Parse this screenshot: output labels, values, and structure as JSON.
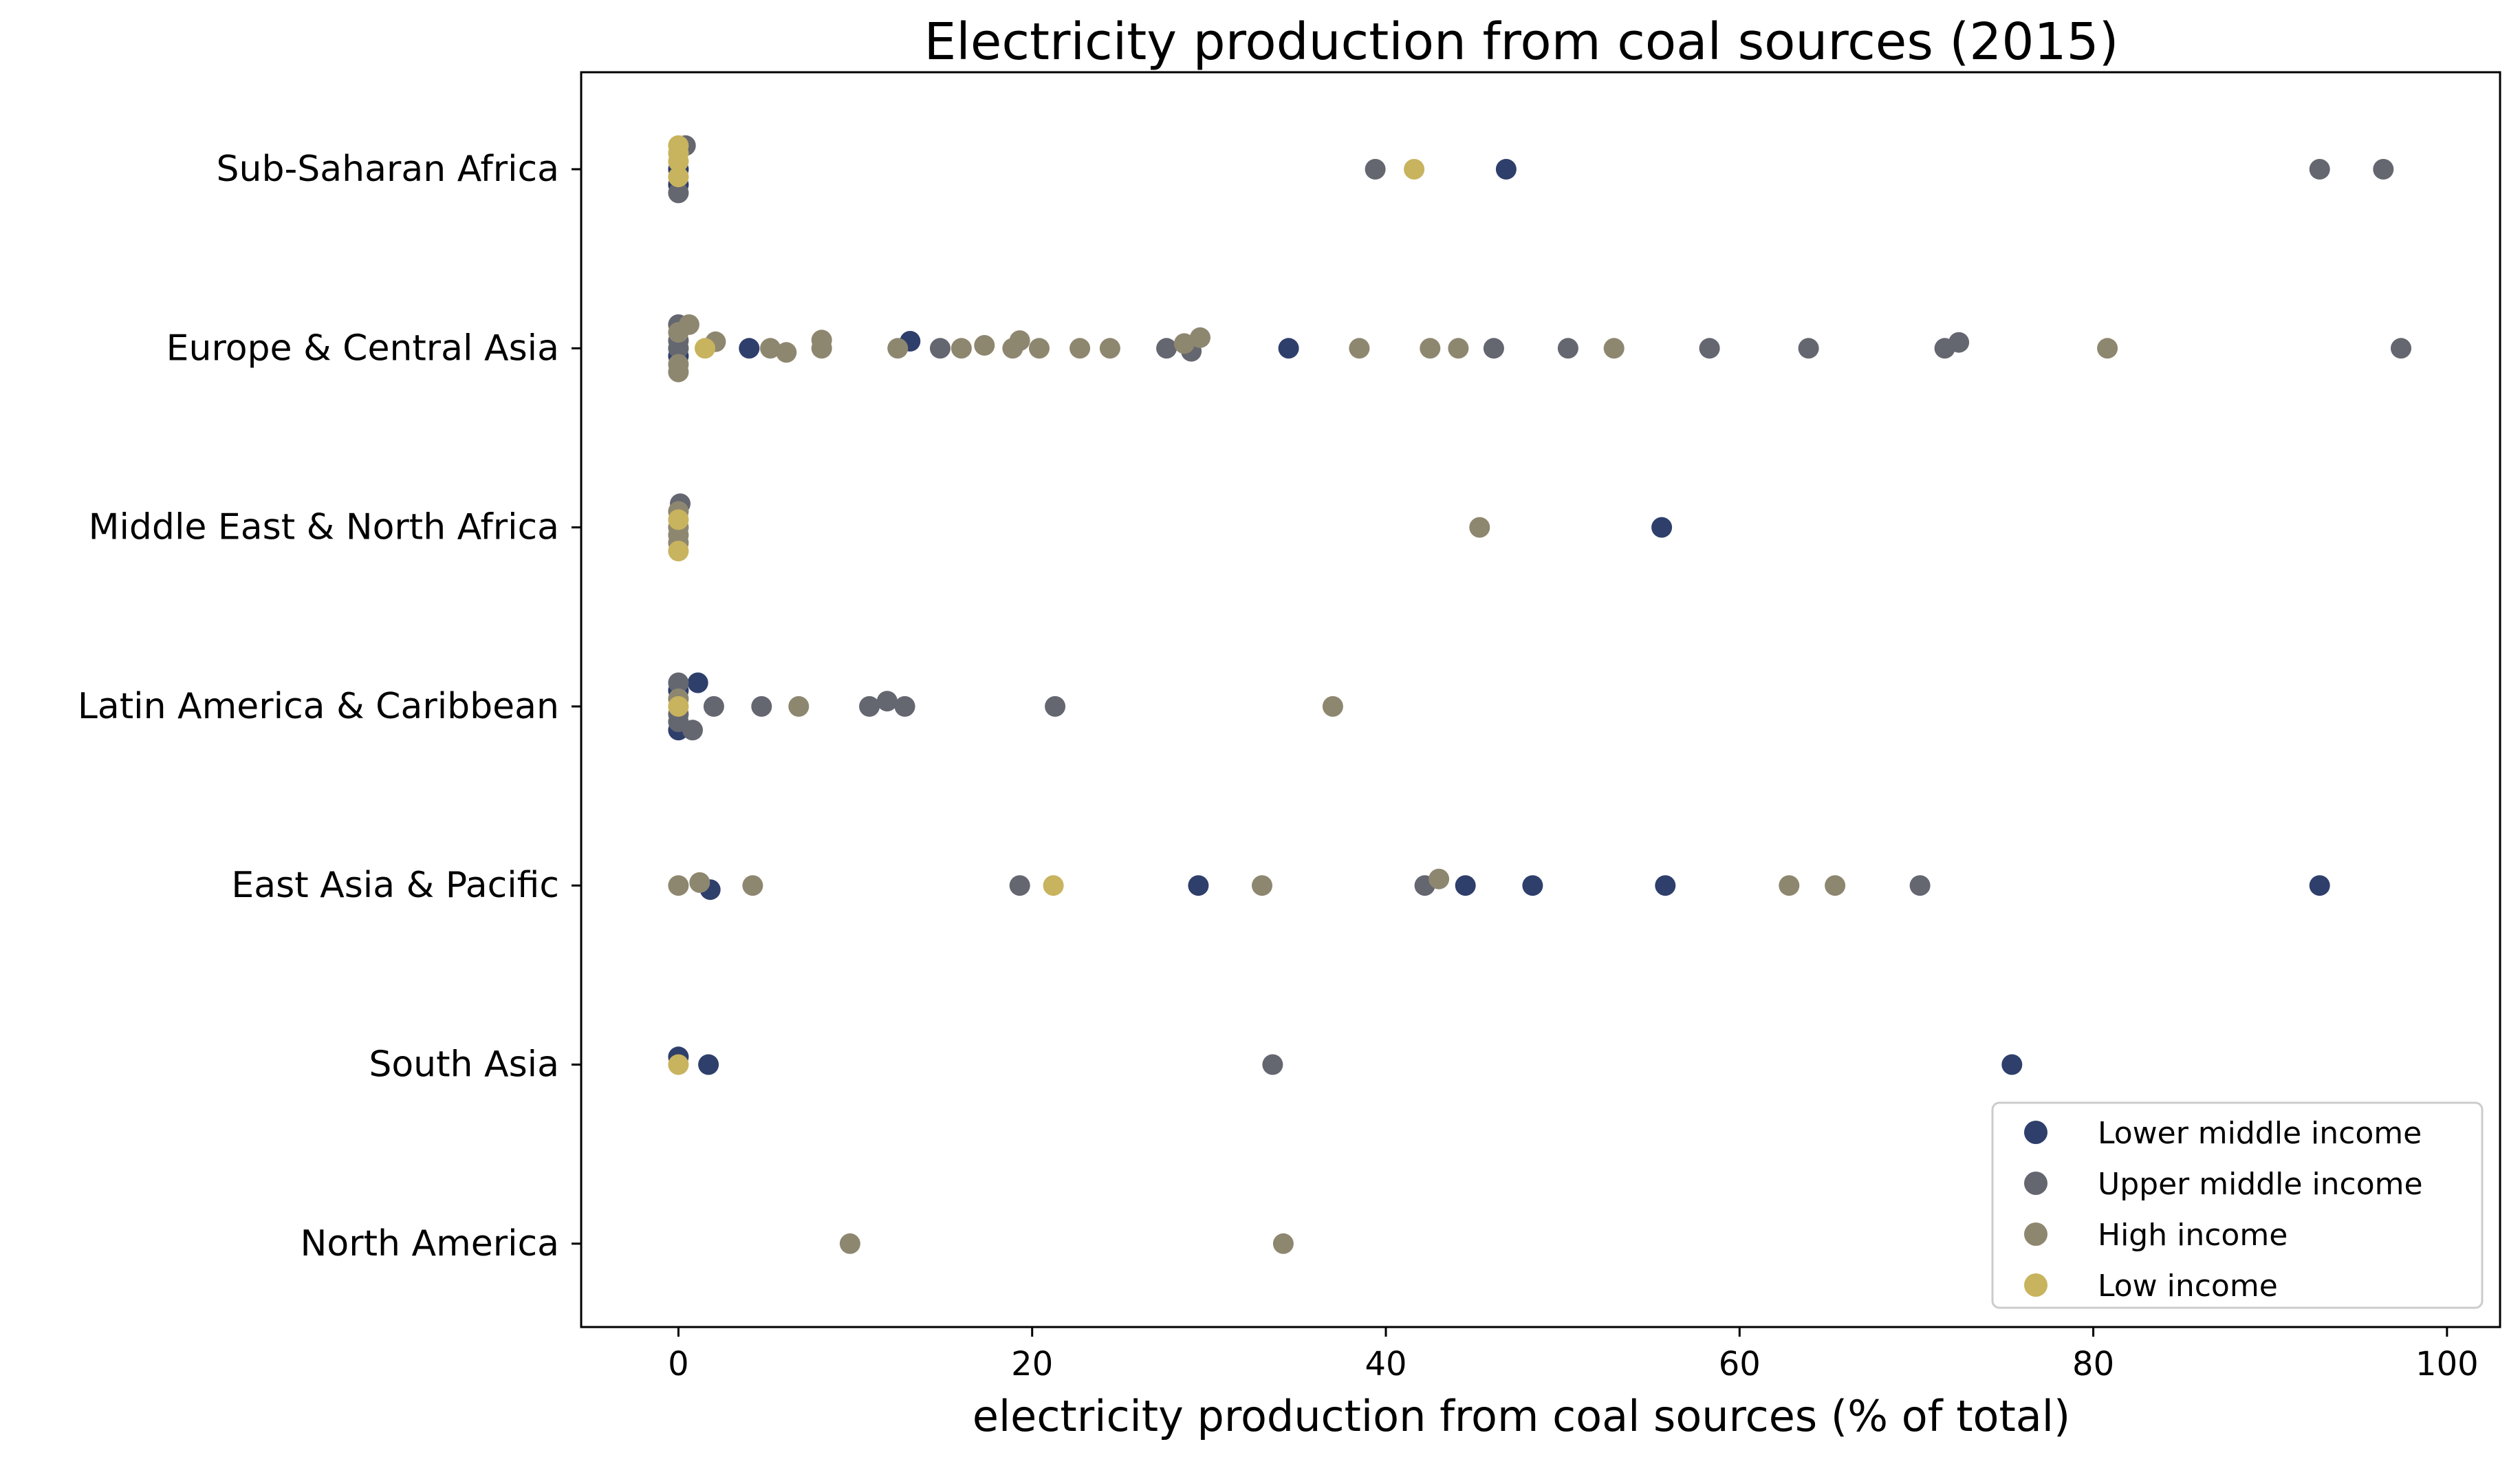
{
  "chart_data": {
    "type": "scatter",
    "subtype": "swarm / strip plot",
    "title": "Electricity production from coal sources (2015)",
    "xlabel": "electricity production from coal sources (% of total)",
    "ylabel": "",
    "xlim": [
      -5.5,
      103
    ],
    "xticks": [
      0,
      20,
      40,
      60,
      80,
      100
    ],
    "xtick_labels": [
      "0",
      "20",
      "40",
      "60",
      "80",
      "100"
    ],
    "categories": [
      "Sub-Saharan Africa",
      "Europe & Central Asia",
      "Middle East & North Africa",
      "Latin America & Caribbean",
      "East Asia & Pacific",
      "South Asia",
      "North America"
    ],
    "grid": false,
    "legend_position": "lower right",
    "series": [
      {
        "name": "Lower middle income",
        "color": "#2f3f6b",
        "points": [
          {
            "category": "Sub-Saharan Africa",
            "x": 0.0,
            "offset": 0.0
          },
          {
            "category": "Sub-Saharan Africa",
            "x": 0.0,
            "offset": 0.26
          },
          {
            "category": "Sub-Saharan Africa",
            "x": 46.8,
            "offset": 0.0
          },
          {
            "category": "Europe & Central Asia",
            "x": 0.0,
            "offset": 0.13
          },
          {
            "category": "Europe & Central Asia",
            "x": 4.0,
            "offset": 0.0
          },
          {
            "category": "Europe & Central Asia",
            "x": 13.1,
            "offset": -0.12
          },
          {
            "category": "Europe & Central Asia",
            "x": 34.5,
            "offset": 0.0
          },
          {
            "category": "Middle East & North Africa",
            "x": 55.6,
            "offset": 0.0
          },
          {
            "category": "Latin America & Caribbean",
            "x": 1.1,
            "offset": -0.4
          },
          {
            "category": "Latin America & Caribbean",
            "x": 0.0,
            "offset": -0.27
          },
          {
            "category": "Latin America & Caribbean",
            "x": 0.0,
            "offset": 0.4
          },
          {
            "category": "East Asia & Pacific",
            "x": 1.8,
            "offset": 0.07
          },
          {
            "category": "East Asia & Pacific",
            "x": 29.4,
            "offset": 0.0
          },
          {
            "category": "East Asia & Pacific",
            "x": 44.5,
            "offset": 0.0
          },
          {
            "category": "East Asia & Pacific",
            "x": 48.3,
            "offset": 0.0
          },
          {
            "category": "East Asia & Pacific",
            "x": 55.8,
            "offset": 0.0
          },
          {
            "category": "East Asia & Pacific",
            "x": 92.8,
            "offset": 0.0
          },
          {
            "category": "South Asia",
            "x": 0.0,
            "offset": -0.13
          },
          {
            "category": "South Asia",
            "x": 1.7,
            "offset": 0.0
          },
          {
            "category": "South Asia",
            "x": 75.4,
            "offset": 0.0
          }
        ]
      },
      {
        "name": "Upper middle income",
        "color": "#646670",
        "points": [
          {
            "category": "Sub-Saharan Africa",
            "x": 0.4,
            "offset": -0.4
          },
          {
            "category": "Sub-Saharan Africa",
            "x": 0.0,
            "offset": 0.4
          },
          {
            "category": "Sub-Saharan Africa",
            "x": 39.4,
            "offset": 0.0
          },
          {
            "category": "Sub-Saharan Africa",
            "x": 92.8,
            "offset": 0.0
          },
          {
            "category": "Sub-Saharan Africa",
            "x": 96.4,
            "offset": 0.0
          },
          {
            "category": "Europe & Central Asia",
            "x": 0.0,
            "offset": -0.4
          },
          {
            "category": "Europe & Central Asia",
            "x": 0.0,
            "offset": -0.13
          },
          {
            "category": "Europe & Central Asia",
            "x": 0.0,
            "offset": 0.0
          },
          {
            "category": "Europe & Central Asia",
            "x": 14.8,
            "offset": 0.0
          },
          {
            "category": "Europe & Central Asia",
            "x": 27.6,
            "offset": 0.0
          },
          {
            "category": "Europe & Central Asia",
            "x": 29.0,
            "offset": 0.05
          },
          {
            "category": "Europe & Central Asia",
            "x": 46.1,
            "offset": 0.0
          },
          {
            "category": "Europe & Central Asia",
            "x": 50.3,
            "offset": 0.0
          },
          {
            "category": "Europe & Central Asia",
            "x": 58.3,
            "offset": 0.0
          },
          {
            "category": "Europe & Central Asia",
            "x": 63.9,
            "offset": 0.0
          },
          {
            "category": "Europe & Central Asia",
            "x": 71.6,
            "offset": 0.0
          },
          {
            "category": "Europe & Central Asia",
            "x": 72.4,
            "offset": -0.1
          },
          {
            "category": "Europe & Central Asia",
            "x": 97.4,
            "offset": 0.0
          },
          {
            "category": "Middle East & North Africa",
            "x": 0.1,
            "offset": -0.4
          },
          {
            "category": "Latin America & Caribbean",
            "x": 0.0,
            "offset": -0.4
          },
          {
            "category": "Latin America & Caribbean",
            "x": 2.0,
            "offset": 0.0
          },
          {
            "category": "Latin America & Caribbean",
            "x": 4.7,
            "offset": 0.0
          },
          {
            "category": "Latin America & Caribbean",
            "x": 10.8,
            "offset": 0.0
          },
          {
            "category": "Latin America & Caribbean",
            "x": 11.8,
            "offset": -0.09
          },
          {
            "category": "Latin America & Caribbean",
            "x": 12.8,
            "offset": 0.0
          },
          {
            "category": "Latin America & Caribbean",
            "x": 21.3,
            "offset": 0.0
          },
          {
            "category": "Latin America & Caribbean",
            "x": 0.0,
            "offset": 0.13
          },
          {
            "category": "Latin America & Caribbean",
            "x": 0.0,
            "offset": 0.26
          },
          {
            "category": "Latin America & Caribbean",
            "x": 0.8,
            "offset": 0.4
          },
          {
            "category": "East Asia & Pacific",
            "x": 19.3,
            "offset": 0.0
          },
          {
            "category": "East Asia & Pacific",
            "x": 42.2,
            "offset": 0.0
          },
          {
            "category": "East Asia & Pacific",
            "x": 70.2,
            "offset": 0.0
          },
          {
            "category": "South Asia",
            "x": 33.6,
            "offset": 0.0
          }
        ]
      },
      {
        "name": "High income",
        "color": "#8e8770",
        "points": [
          {
            "category": "Europe & Central Asia",
            "x": 0.6,
            "offset": -0.4
          },
          {
            "category": "Europe & Central Asia",
            "x": 0.0,
            "offset": -0.27
          },
          {
            "category": "Europe & Central Asia",
            "x": 2.1,
            "offset": -0.11
          },
          {
            "category": "Europe & Central Asia",
            "x": 5.2,
            "offset": 0.0
          },
          {
            "category": "Europe & Central Asia",
            "x": 6.1,
            "offset": 0.07
          },
          {
            "category": "Europe & Central Asia",
            "x": 8.1,
            "offset": -0.14
          },
          {
            "category": "Europe & Central Asia",
            "x": 8.1,
            "offset": 0.0
          },
          {
            "category": "Europe & Central Asia",
            "x": 12.4,
            "offset": 0.0
          },
          {
            "category": "Europe & Central Asia",
            "x": 16.0,
            "offset": 0.0
          },
          {
            "category": "Europe & Central Asia",
            "x": 17.3,
            "offset": -0.05
          },
          {
            "category": "Europe & Central Asia",
            "x": 18.9,
            "offset": 0.0
          },
          {
            "category": "Europe & Central Asia",
            "x": 19.3,
            "offset": -0.13
          },
          {
            "category": "Europe & Central Asia",
            "x": 20.4,
            "offset": 0.0
          },
          {
            "category": "Europe & Central Asia",
            "x": 22.7,
            "offset": 0.0
          },
          {
            "category": "Europe & Central Asia",
            "x": 24.4,
            "offset": 0.0
          },
          {
            "category": "Europe & Central Asia",
            "x": 28.6,
            "offset": -0.08
          },
          {
            "category": "Europe & Central Asia",
            "x": 29.5,
            "offset": -0.18
          },
          {
            "category": "Europe & Central Asia",
            "x": 38.5,
            "offset": 0.0
          },
          {
            "category": "Europe & Central Asia",
            "x": 42.5,
            "offset": 0.0
          },
          {
            "category": "Europe & Central Asia",
            "x": 44.1,
            "offset": 0.0
          },
          {
            "category": "Europe & Central Asia",
            "x": 52.9,
            "offset": 0.0
          },
          {
            "category": "Europe & Central Asia",
            "x": 80.8,
            "offset": 0.0
          },
          {
            "category": "Europe & Central Asia",
            "x": 0.0,
            "offset": 0.27
          },
          {
            "category": "Europe & Central Asia",
            "x": 0.0,
            "offset": 0.4
          },
          {
            "category": "Middle East & North Africa",
            "x": 0.0,
            "offset": -0.27
          },
          {
            "category": "Middle East & North Africa",
            "x": 0.0,
            "offset": 0.0
          },
          {
            "category": "Middle East & North Africa",
            "x": 0.0,
            "offset": 0.13
          },
          {
            "category": "Middle East & North Africa",
            "x": 0.0,
            "offset": 0.26
          },
          {
            "category": "Middle East & North Africa",
            "x": 45.3,
            "offset": 0.0
          },
          {
            "category": "Latin America & Caribbean",
            "x": 0.0,
            "offset": -0.13
          },
          {
            "category": "Latin America & Caribbean",
            "x": 6.8,
            "offset": 0.0
          },
          {
            "category": "Latin America & Caribbean",
            "x": 37.0,
            "offset": 0.0
          },
          {
            "category": "East Asia & Pacific",
            "x": 0.0,
            "offset": 0.0
          },
          {
            "category": "East Asia & Pacific",
            "x": 1.2,
            "offset": -0.05
          },
          {
            "category": "East Asia & Pacific",
            "x": 4.2,
            "offset": 0.0
          },
          {
            "category": "East Asia & Pacific",
            "x": 33.0,
            "offset": 0.0
          },
          {
            "category": "East Asia & Pacific",
            "x": 43.0,
            "offset": -0.11
          },
          {
            "category": "East Asia & Pacific",
            "x": 62.8,
            "offset": 0.0
          },
          {
            "category": "East Asia & Pacific",
            "x": 65.4,
            "offset": 0.0
          },
          {
            "category": "North America",
            "x": 9.7,
            "offset": 0.0
          },
          {
            "category": "North America",
            "x": 34.2,
            "offset": 0.0
          }
        ]
      },
      {
        "name": "Low income",
        "color": "#c8b35e",
        "points": [
          {
            "category": "Sub-Saharan Africa",
            "x": 0.0,
            "offset": -0.4
          },
          {
            "category": "Sub-Saharan Africa",
            "x": 0.0,
            "offset": -0.27
          },
          {
            "category": "Sub-Saharan Africa",
            "x": 0.0,
            "offset": -0.13
          },
          {
            "category": "Sub-Saharan Africa",
            "x": 0.0,
            "offset": 0.13
          },
          {
            "category": "Sub-Saharan Africa",
            "x": 41.6,
            "offset": 0.0
          },
          {
            "category": "Europe & Central Asia",
            "x": 1.5,
            "offset": 0.0
          },
          {
            "category": "Middle East & North Africa",
            "x": 0.0,
            "offset": -0.13
          },
          {
            "category": "Middle East & North Africa",
            "x": 0.0,
            "offset": 0.4
          },
          {
            "category": "Latin America & Caribbean",
            "x": 0.0,
            "offset": 0.0
          },
          {
            "category": "East Asia & Pacific",
            "x": 21.2,
            "offset": 0.0
          },
          {
            "category": "South Asia",
            "x": 0.0,
            "offset": 0.0
          }
        ]
      }
    ]
  }
}
